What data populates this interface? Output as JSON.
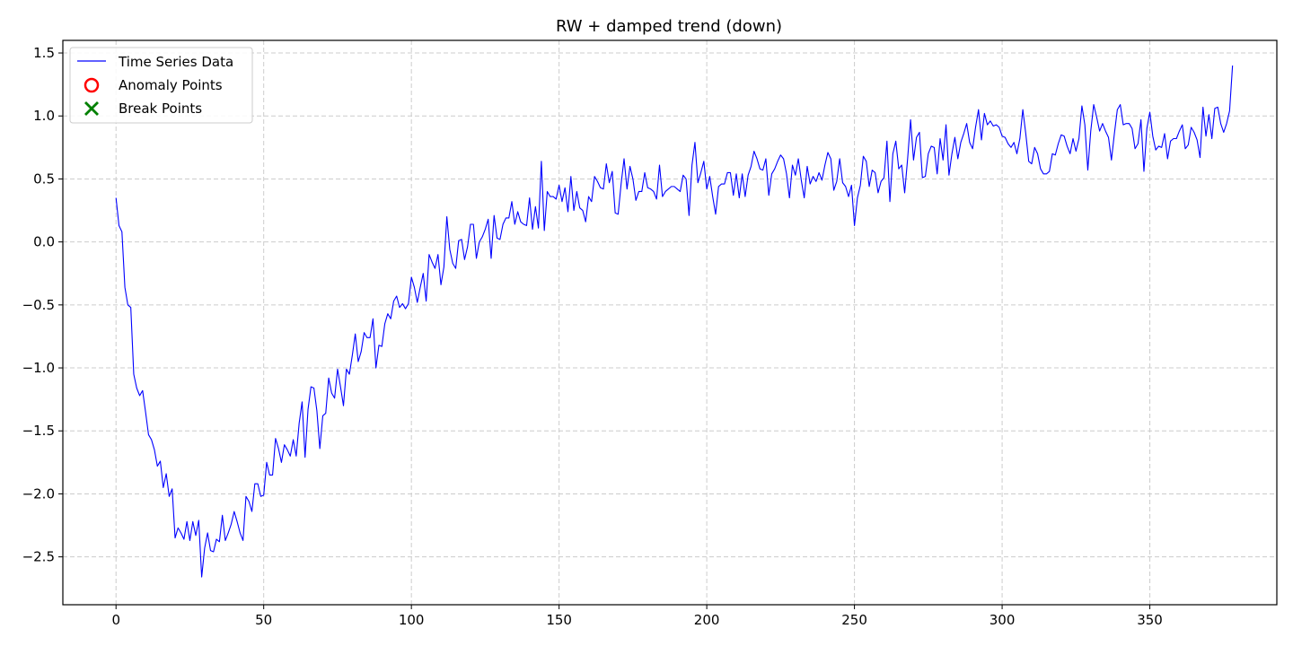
{
  "chart_data": {
    "type": "line",
    "title": "RW + damped trend (down)",
    "xlabel": "",
    "ylabel": "",
    "xlim": [
      -18,
      393
    ],
    "ylim": [
      -2.88,
      1.6
    ],
    "xticks": [
      0,
      50,
      100,
      150,
      200,
      250,
      300,
      350
    ],
    "xtick_labels": [
      "0",
      "50",
      "100",
      "150",
      "200",
      "250",
      "300",
      "350"
    ],
    "yticks": [
      1.5,
      1.0,
      0.5,
      0.0,
      -0.5,
      -1.0,
      -1.5,
      -2.0,
      -2.5
    ],
    "ytick_labels": [
      "1.5",
      "1.0",
      "0.5",
      "0.0",
      "−0.5",
      "−1.0",
      "−1.5",
      "−2.0",
      "−2.5"
    ],
    "grid": true,
    "legend": {
      "placement": "upper-left",
      "entries": [
        {
          "label": "Time Series Data",
          "marker": "line",
          "color": "#0000ff"
        },
        {
          "label": "Anomaly Points",
          "marker": "hollow-circle",
          "color": "#ff0000"
        },
        {
          "label": "Break Points",
          "marker": "x",
          "color": "#008000"
        }
      ]
    },
    "series": [
      {
        "name": "Time Series Data",
        "color": "#0000ff",
        "x_start": 0,
        "x_step": 1,
        "values": [
          0.35,
          0.13,
          0.08,
          -0.36,
          -0.5,
          -0.52,
          -1.05,
          -1.16,
          -1.22,
          -1.18,
          -1.35,
          -1.53,
          -1.57,
          -1.65,
          -1.78,
          -1.74,
          -1.95,
          -1.84,
          -2.02,
          -1.96,
          -2.35,
          -2.27,
          -2.31,
          -2.36,
          -2.22,
          -2.37,
          -2.22,
          -2.33,
          -2.21,
          -2.66,
          -2.43,
          -2.31,
          -2.45,
          -2.46,
          -2.36,
          -2.38,
          -2.17,
          -2.37,
          -2.31,
          -2.24,
          -2.14,
          -2.22,
          -2.31,
          -2.37,
          -2.02,
          -2.06,
          -2.14,
          -1.92,
          -1.92,
          -2.02,
          -2.01,
          -1.75,
          -1.85,
          -1.85,
          -1.56,
          -1.64,
          -1.75,
          -1.61,
          -1.65,
          -1.7,
          -1.57,
          -1.7,
          -1.44,
          -1.27,
          -1.71,
          -1.33,
          -1.15,
          -1.16,
          -1.34,
          -1.64,
          -1.38,
          -1.36,
          -1.08,
          -1.2,
          -1.24,
          -1.01,
          -1.15,
          -1.3,
          -1.01,
          -1.05,
          -0.9,
          -0.73,
          -0.95,
          -0.87,
          -0.72,
          -0.76,
          -0.76,
          -0.61,
          -1.0,
          -0.82,
          -0.83,
          -0.65,
          -0.57,
          -0.61,
          -0.47,
          -0.43,
          -0.52,
          -0.49,
          -0.53,
          -0.49,
          -0.28,
          -0.36,
          -0.48,
          -0.36,
          -0.25,
          -0.47,
          -0.1,
          -0.16,
          -0.21,
          -0.1,
          -0.34,
          -0.2,
          0.2,
          -0.06,
          -0.17,
          -0.21,
          0.01,
          0.02,
          -0.14,
          -0.04,
          0.14,
          0.14,
          -0.13,
          0.0,
          0.04,
          0.1,
          0.18,
          -0.13,
          0.21,
          0.03,
          0.02,
          0.14,
          0.19,
          0.19,
          0.32,
          0.14,
          0.24,
          0.16,
          0.14,
          0.13,
          0.35,
          0.1,
          0.28,
          0.11,
          0.64,
          0.09,
          0.4,
          0.36,
          0.36,
          0.34,
          0.45,
          0.32,
          0.43,
          0.24,
          0.52,
          0.25,
          0.4,
          0.27,
          0.25,
          0.16,
          0.36,
          0.32,
          0.52,
          0.48,
          0.43,
          0.42,
          0.62,
          0.47,
          0.56,
          0.23,
          0.22,
          0.46,
          0.66,
          0.42,
          0.6,
          0.5,
          0.33,
          0.4,
          0.4,
          0.55,
          0.43,
          0.42,
          0.4,
          0.34,
          0.61,
          0.36,
          0.4,
          0.42,
          0.44,
          0.44,
          0.42,
          0.4,
          0.53,
          0.5,
          0.21,
          0.61,
          0.79,
          0.47,
          0.55,
          0.64,
          0.42,
          0.52,
          0.36,
          0.22,
          0.44,
          0.46,
          0.46,
          0.55,
          0.55,
          0.37,
          0.54,
          0.35,
          0.54,
          0.36,
          0.53,
          0.6,
          0.72,
          0.66,
          0.58,
          0.57,
          0.66,
          0.37,
          0.54,
          0.58,
          0.64,
          0.69,
          0.66,
          0.54,
          0.35,
          0.61,
          0.53,
          0.66,
          0.49,
          0.35,
          0.6,
          0.46,
          0.52,
          0.48,
          0.55,
          0.49,
          0.61,
          0.71,
          0.66,
          0.41,
          0.48,
          0.66,
          0.47,
          0.44,
          0.36,
          0.45,
          0.13,
          0.35,
          0.45,
          0.68,
          0.64,
          0.44,
          0.57,
          0.55,
          0.39,
          0.48,
          0.51,
          0.8,
          0.32,
          0.7,
          0.8,
          0.58,
          0.61,
          0.39,
          0.66,
          0.97,
          0.65,
          0.83,
          0.87,
          0.51,
          0.52,
          0.7,
          0.76,
          0.75,
          0.54,
          0.82,
          0.65,
          0.93,
          0.53,
          0.7,
          0.83,
          0.66,
          0.79,
          0.86,
          0.94,
          0.79,
          0.74,
          0.91,
          1.05,
          0.81,
          1.02,
          0.93,
          0.96,
          0.92,
          0.93,
          0.91,
          0.84,
          0.83,
          0.78,
          0.75,
          0.79,
          0.7,
          0.82,
          1.05,
          0.86,
          0.64,
          0.62,
          0.75,
          0.7,
          0.58,
          0.54,
          0.54,
          0.56,
          0.7,
          0.69,
          0.78,
          0.85,
          0.84,
          0.76,
          0.7,
          0.82,
          0.72,
          0.82,
          1.08,
          0.93,
          0.57,
          0.88,
          1.09,
          0.99,
          0.88,
          0.94,
          0.88,
          0.83,
          0.65,
          0.86,
          1.05,
          1.09,
          0.93,
          0.94,
          0.94,
          0.9,
          0.74,
          0.78,
          0.97,
          0.56,
          0.9,
          1.03,
          0.84,
          0.73,
          0.76,
          0.75,
          0.86,
          0.66,
          0.8,
          0.82,
          0.82,
          0.88,
          0.93,
          0.74,
          0.77,
          0.91,
          0.87,
          0.81,
          0.67,
          1.07,
          0.84,
          1.01,
          0.82,
          1.06,
          1.07,
          0.94,
          0.87,
          0.94,
          1.04,
          1.4
        ]
      }
    ],
    "anomaly_points": [],
    "break_points": []
  }
}
